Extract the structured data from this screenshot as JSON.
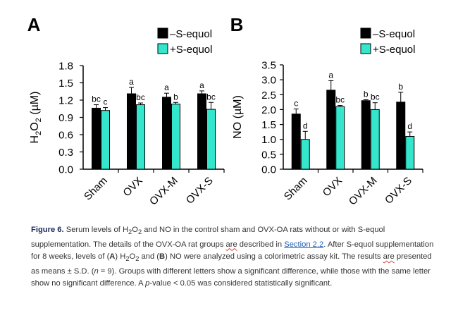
{
  "chart_data": [
    {
      "type": "bar",
      "panel_label": "A",
      "ylabel": "H₂O₂ (µM)",
      "ylim": [
        0.0,
        1.8
      ],
      "yticks": [
        "0.0",
        "0.3",
        "0.6",
        "0.9",
        "1.2",
        "1.5",
        "1.8"
      ],
      "categories": [
        "Sham",
        "OVX",
        "OVX-M",
        "OVX-S"
      ],
      "legend": [
        "–S-equol",
        "+S-equol"
      ],
      "series": [
        {
          "name": "–S-equol",
          "color": "#000000",
          "values": [
            1.06,
            1.31,
            1.25,
            1.31
          ],
          "errors": [
            0.06,
            0.11,
            0.07,
            0.05
          ],
          "labels": [
            "bc",
            "a",
            "a",
            "a"
          ]
        },
        {
          "name": "+S-equol",
          "color": "#33e6cc",
          "values": [
            1.02,
            1.12,
            1.13,
            1.04
          ],
          "errors": [
            0.05,
            0.03,
            0.03,
            0.12
          ],
          "labels": [
            "c",
            "bc",
            "b",
            "bc"
          ]
        }
      ]
    },
    {
      "type": "bar",
      "panel_label": "B",
      "ylabel": "NO (µM)",
      "ylim": [
        0.0,
        3.5
      ],
      "yticks": [
        "0.0",
        "0.5",
        "1.0",
        "1.5",
        "2.0",
        "2.5",
        "3.0",
        "3.5"
      ],
      "categories": [
        "Sham",
        "OVX",
        "OVX-M",
        "OVX-S"
      ],
      "legend": [
        "–S-equol",
        "+S-equol"
      ],
      "series": [
        {
          "name": "–S-equol",
          "color": "#000000",
          "values": [
            1.85,
            2.65,
            2.3,
            2.25
          ],
          "errors": [
            0.17,
            0.32,
            0.03,
            0.33
          ],
          "labels": [
            "c",
            "a",
            "b",
            "b"
          ]
        },
        {
          "name": "+S-equol",
          "color": "#33e6cc",
          "values": [
            1.0,
            2.1,
            2.0,
            1.1
          ],
          "errors": [
            0.27,
            0.04,
            0.23,
            0.15
          ],
          "labels": [
            "d",
            "bc",
            "bc",
            "d"
          ]
        }
      ]
    }
  ],
  "caption": {
    "figure_label": "Figure 6.",
    "part1": " Serum levels of H",
    "part2": "O",
    "part3": " and NO in the control sham and OVX-OA rats without or with S-equol supplementation. The details of the OVX-OA rat groups ",
    "are1": "are",
    "part4": " described in ",
    "link": "Section 2.2",
    "part5": ". After S-equol supplementation for 8 weeks, levels of (",
    "a": "A",
    "part6": ") H",
    "part7": "O",
    "part8": " and (",
    "b": "B",
    "part9": ") NO were analyzed using a colorimetric assay kit. The results ",
    "are2": "are",
    "part10": " presented as means ± S.D. (",
    "n": "n",
    "part11": " = 9). Groups with different letters show a significant difference, while those with the same letter show no significant difference. A ",
    "p": "p",
    "part12": "-value < 0.05 was considered statistically significant.",
    "sub2": "2"
  }
}
